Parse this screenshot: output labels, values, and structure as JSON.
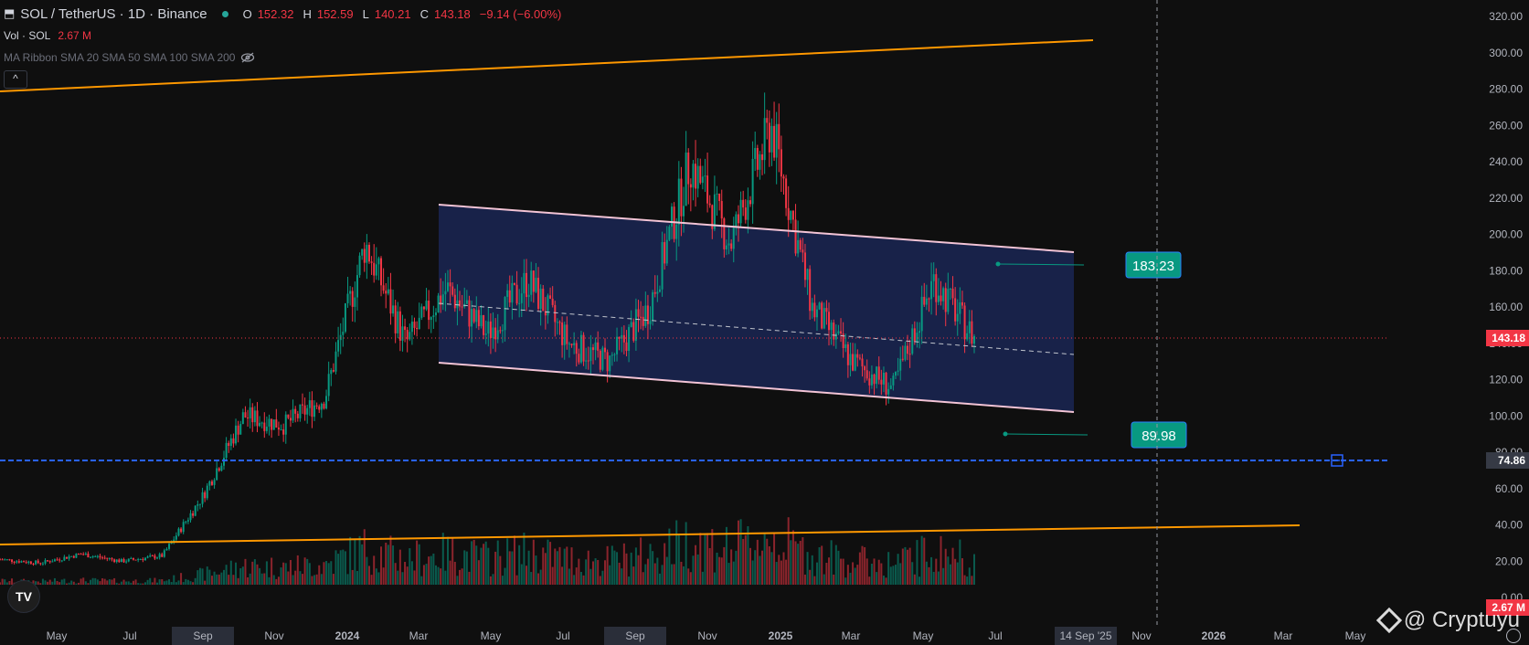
{
  "header": {
    "symbol": "SOL / TetherUS · 1D · Binance",
    "open_label": "O",
    "open": "152.32",
    "high_label": "H",
    "high": "152.59",
    "low_label": "L",
    "low": "140.21",
    "close_label": "C",
    "close": "143.18",
    "change": "−9.14 (−6.00%)",
    "status_color": "#26a69a"
  },
  "vol": {
    "label": "Vol · SOL",
    "value": "2.67 M"
  },
  "ma_ribbon": {
    "label": "MA Ribbon SMA 20 SMA 50 SMA 100 SMA 200",
    "icon": "eye-off-icon"
  },
  "collapse_label": "^",
  "logo_text": "TV",
  "watermark": "@ Cryptuyu",
  "chart_data": {
    "type": "candlestick",
    "y_axis_ticks": [
      "320.00",
      "300.00",
      "280.00",
      "260.00",
      "240.00",
      "220.00",
      "200.00",
      "180.00",
      "160.00",
      "140.00",
      "120.00",
      "100.00",
      "80.00",
      "60.00",
      "40.00",
      "20.00",
      "0.00"
    ],
    "x_axis_labels": [
      "May",
      "Jul",
      "Sep",
      "Nov",
      "2024",
      "Mar",
      "May",
      "Jul",
      "Sep",
      "Nov",
      "2025",
      "Mar",
      "May",
      "Jul",
      "14 Sep '25",
      "Nov",
      "2026",
      "Mar",
      "May"
    ],
    "price_badges": [
      {
        "label": "143.18",
        "color": "#f23645"
      },
      {
        "label": "74.86",
        "color": "#363a45"
      },
      {
        "label": "2.67 M",
        "color": "#f23645"
      }
    ],
    "channel_labels": [
      {
        "label": "183.23",
        "color": "#089981"
      },
      {
        "label": "89.98",
        "color": "#089981"
      }
    ],
    "close_series": [
      {
        "x": "2023-04",
        "y": 21
      },
      {
        "x": "2023-06",
        "y": 19
      },
      {
        "x": "2023-07",
        "y": 24
      },
      {
        "x": "2023-09",
        "y": 20
      },
      {
        "x": "2023-10",
        "y": 23
      },
      {
        "x": "2023-11",
        "y": 56
      },
      {
        "x": "2023-12",
        "y": 100
      },
      {
        "x": "2024-01",
        "y": 95
      },
      {
        "x": "2024-02",
        "y": 110
      },
      {
        "x": "2024-03",
        "y": 195
      },
      {
        "x": "2024-04",
        "y": 140
      },
      {
        "x": "2024-05",
        "y": 170
      },
      {
        "x": "2024-06",
        "y": 145
      },
      {
        "x": "2024-07",
        "y": 175
      },
      {
        "x": "2024-08",
        "y": 140
      },
      {
        "x": "2024-09",
        "y": 130
      },
      {
        "x": "2024-10",
        "y": 160
      },
      {
        "x": "2024-11",
        "y": 240
      },
      {
        "x": "2024-12",
        "y": 195
      },
      {
        "x": "2025-01",
        "y": 260
      },
      {
        "x": "2025-02",
        "y": 160
      },
      {
        "x": "2025-03",
        "y": 130
      },
      {
        "x": "2025-04",
        "y": 115
      },
      {
        "x": "2025-05",
        "y": 175
      },
      {
        "x": "2025-06",
        "y": 143
      }
    ],
    "volume_peak": "2.67 M",
    "colors": {
      "up": "#089981",
      "down": "#f23645",
      "trend": "#ff9800",
      "channel": "#f3c4d6",
      "fill": "#1a2550",
      "support": "#2962ff"
    }
  }
}
